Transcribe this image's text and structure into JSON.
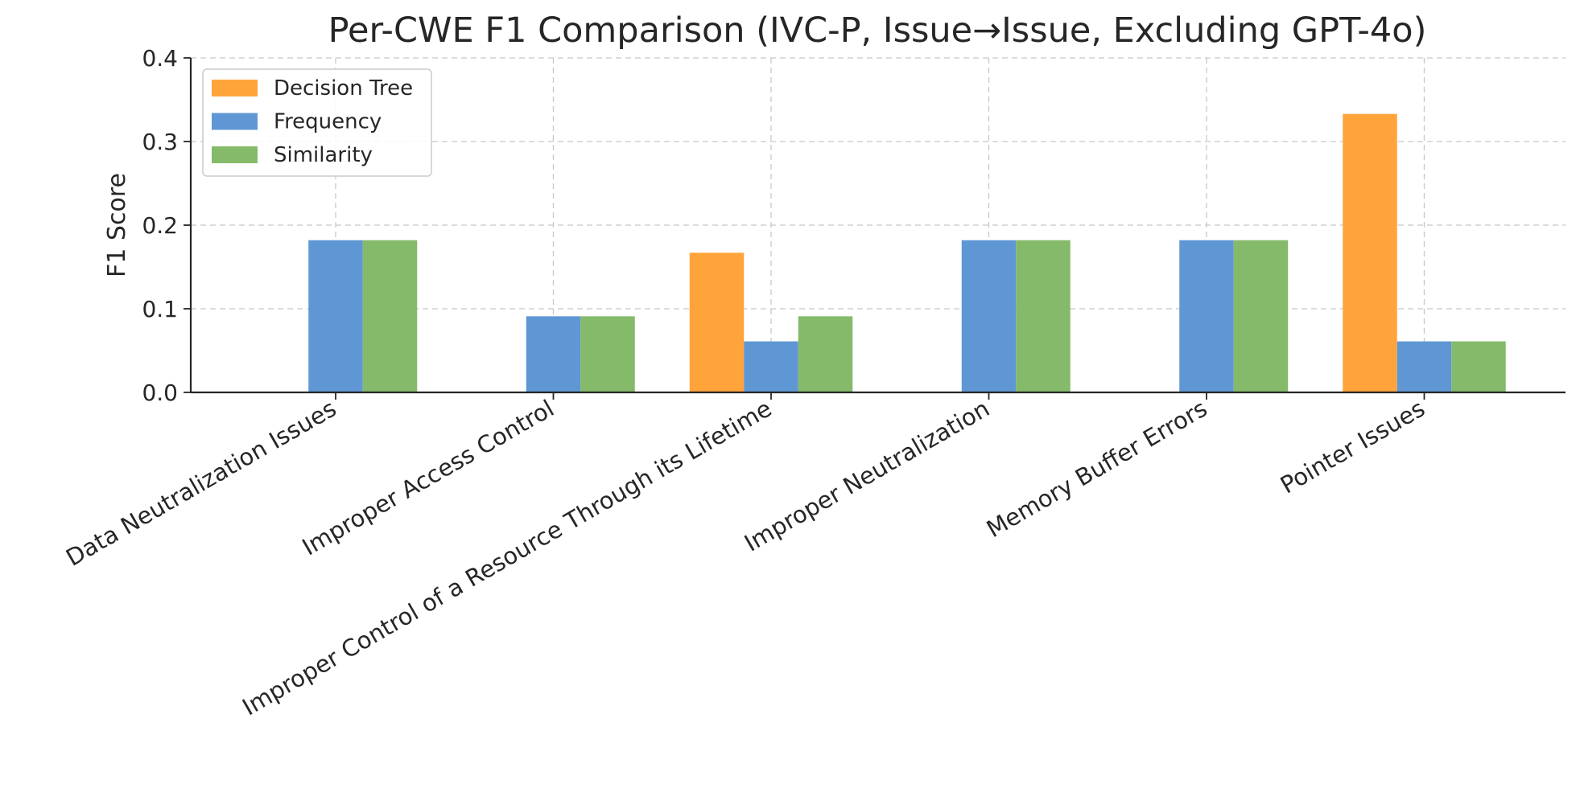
{
  "chart_data": {
    "type": "bar",
    "title": "Per-CWE F1 Comparison (IVC-P, Issue→Issue, Excluding GPT-4o)",
    "xlabel": "",
    "ylabel": "F1 Score",
    "ylim": [
      0,
      0.4
    ],
    "yticks": [
      "0.0",
      "0.1",
      "0.2",
      "0.3",
      "0.4"
    ],
    "grid": true,
    "legend_position": "top-left",
    "categories": [
      "Data Neutralization Issues",
      "Improper Access Control",
      "Improper Control of a Resource Through its Lifetime",
      "Improper Neutralization",
      "Memory Buffer Errors",
      "Pointer Issues"
    ],
    "series": [
      {
        "name": "Decision Tree",
        "color": "#FFA43B",
        "values": [
          0,
          0,
          0.167,
          0,
          0,
          0.333
        ]
      },
      {
        "name": "Frequency",
        "color": "#5F97D4",
        "values": [
          0.182,
          0.091,
          0.061,
          0.182,
          0.182,
          0.061
        ]
      },
      {
        "name": "Similarity",
        "color": "#84BA6A",
        "values": [
          0.182,
          0.091,
          0.091,
          0.182,
          0.182,
          0.061
        ]
      }
    ]
  }
}
